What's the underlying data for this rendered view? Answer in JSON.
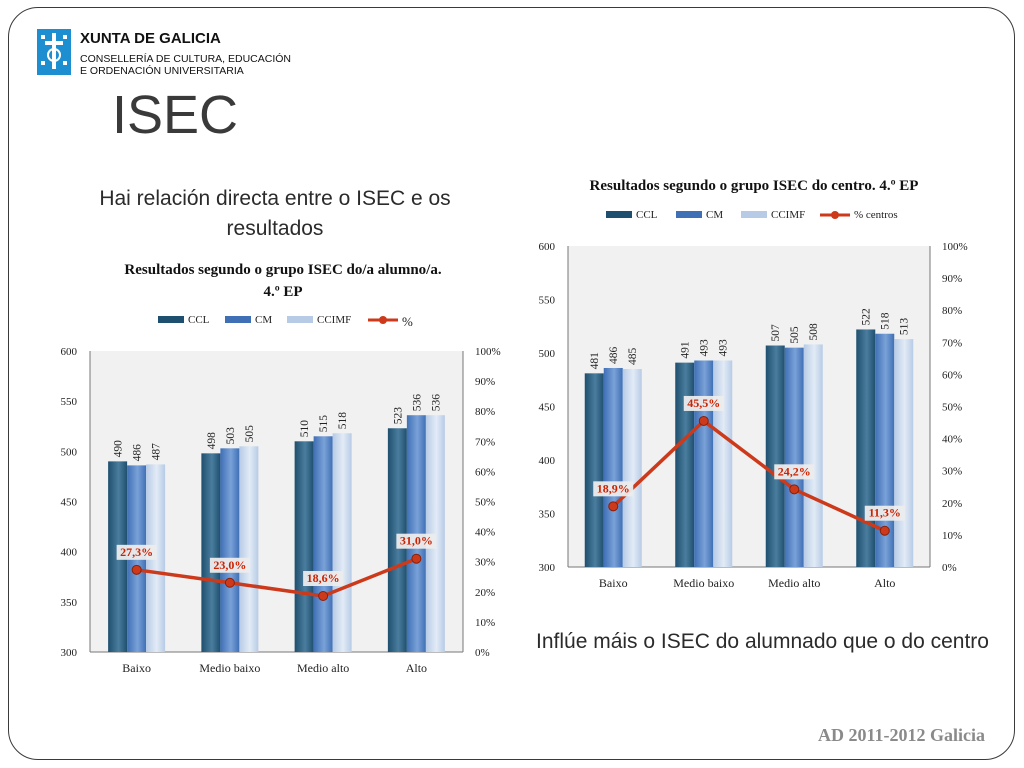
{
  "header": {
    "org_line1": "XUNTA DE GALICIA",
    "org_line2": "CONSELLERÍA DE CULTURA, EDUCACIÓN",
    "org_line3": "E ORDENACIÓN UNIVERSITARIA",
    "logo_icon": "xunta-shield-icon"
  },
  "page_title": "ISEC",
  "headline_left": "Hai relación directa entre o ISEC e os resultados",
  "headline_right": "Inflúe máis o ISEC do alumnado que o do centro",
  "footer": "AD 2011-2012 Galicia",
  "colors": {
    "ccl": "#1f4f6e",
    "cm": "#3f6fb5",
    "ccimf": "#b7cbe6",
    "line": "#cc3a1b",
    "label": "#cc2200"
  },
  "chart_data": [
    {
      "type": "bar",
      "title_lines": [
        "Resultados segundo o grupo ISEC do/a alumno/a.",
        "4.º EP"
      ],
      "categories": [
        "Baixo",
        "Medio baixo",
        "Medio alto",
        "Alto"
      ],
      "series": [
        {
          "name": "CCL",
          "values": [
            490,
            498,
            510,
            523
          ]
        },
        {
          "name": "CM",
          "values": [
            486,
            503,
            515,
            536
          ]
        },
        {
          "name": "CCIMF",
          "values": [
            487,
            505,
            518,
            536
          ]
        }
      ],
      "line_series": {
        "name": "%",
        "values": [
          27.3,
          23.0,
          18.6,
          31.0
        ],
        "labels": [
          "27,3%",
          "23,0%",
          "18,6%",
          "31,0%"
        ]
      },
      "ylim": [
        300,
        600
      ],
      "yticks": [
        "300",
        "350",
        "400",
        "450",
        "500",
        "550",
        "600"
      ],
      "y2lim": [
        0,
        100
      ],
      "y2ticks": [
        "0%",
        "10%",
        "20%",
        "30%",
        "40%",
        "50%",
        "60%",
        "70%",
        "80%",
        "90%",
        "100%"
      ],
      "legend": "top"
    },
    {
      "type": "bar",
      "title_lines": [
        "Resultados segundo o grupo ISEC do centro. 4.º EP"
      ],
      "categories": [
        "Baixo",
        "Medio baixo",
        "Medio alto",
        "Alto"
      ],
      "series": [
        {
          "name": "CCL",
          "values": [
            481,
            491,
            507,
            522
          ]
        },
        {
          "name": "CM",
          "values": [
            486,
            493,
            505,
            518
          ]
        },
        {
          "name": "CCIMF",
          "values": [
            485,
            493,
            508,
            513
          ]
        }
      ],
      "line_series": {
        "name": "% centros",
        "values": [
          18.9,
          45.5,
          24.2,
          11.3
        ],
        "labels": [
          "18,9%",
          "45,5%",
          "24,2%",
          "11,3%"
        ]
      },
      "ylim": [
        300,
        600
      ],
      "yticks": [
        "300",
        "350",
        "400",
        "450",
        "500",
        "550",
        "600"
      ],
      "y2lim": [
        0,
        100
      ],
      "y2ticks": [
        "0%",
        "10%",
        "20%",
        "30%",
        "40%",
        "50%",
        "60%",
        "70%",
        "80%",
        "90%",
        "100%"
      ],
      "legend": "top"
    }
  ]
}
